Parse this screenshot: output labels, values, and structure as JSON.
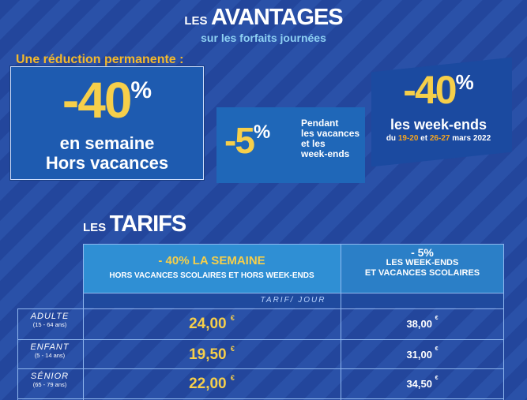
{
  "header": {
    "title_small": "LES",
    "title_big": "AVANTAGES",
    "subtitle": "sur les forfaits journées"
  },
  "panel_weekday": {
    "label": "Une réduction permanente :",
    "value": "-40",
    "percent": "%",
    "line1": "en semaine",
    "line2": "Hors vacances"
  },
  "panel_holidays": {
    "value": "-5",
    "percent": "%",
    "text_lines": [
      "Pendant",
      "les vacances",
      "et les",
      "week-ends"
    ]
  },
  "panel_weekends": {
    "value": "-40",
    "percent": "%",
    "line1": "les week-ends",
    "dates_prefix": "du ",
    "date1": "19-20",
    "dates_mid": " et ",
    "date2": "26-27",
    "dates_suffix": " mars 2022"
  },
  "tarifs": {
    "title_small": "LES",
    "title_big": "TARIFS",
    "col1_pct": "- 40%",
    "col1_title": "LA SEMAINE",
    "col1_sub": "HORS VACANCES SCOLAIRES ET  HORS WEEK-ENDS",
    "col2_pct": "- 5%",
    "col2_line1": "LES WEEK-ENDS",
    "col2_line2": "ET VACANCES SCOLAIRES",
    "unit": "TARIF/ JOUR",
    "currency": "€",
    "rows": [
      {
        "name": "ADULTE",
        "ages": "(15 - 64 ans)",
        "price_week": "24,00",
        "price_weekend": "38,00"
      },
      {
        "name": "ENFANT",
        "ages": "(5 - 14 ans)",
        "price_week": "19,50",
        "price_weekend": "31,00"
      },
      {
        "name": "SÉNIOR",
        "ages": "(65 - 79 ans)",
        "price_week": "22,00",
        "price_weekend": "34,50"
      }
    ]
  }
}
